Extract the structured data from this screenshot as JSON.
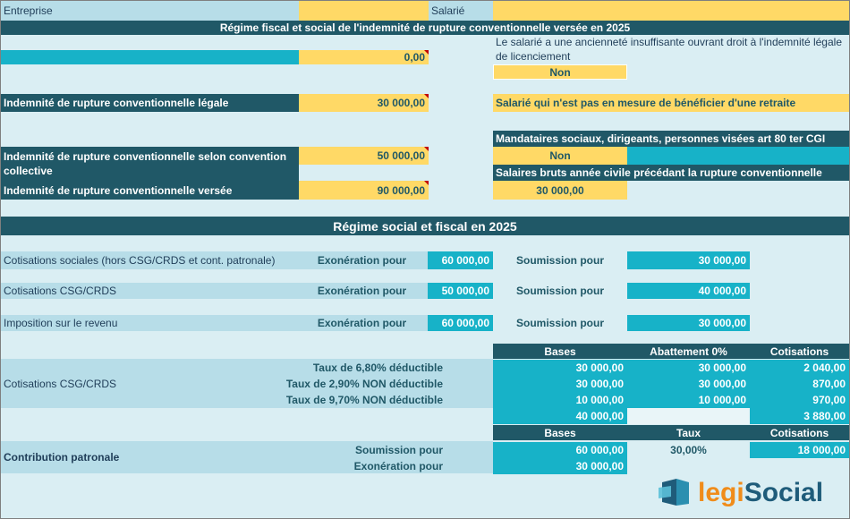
{
  "header": {
    "entreprise_label": "Entreprise",
    "salarie_label": "Salarié",
    "title": "Régime fiscal et social de l'indemnité de rupture conventionnelle versée en 2025"
  },
  "left": {
    "field1_value": "0,00",
    "legal_label": "Indemnité de rupture conventionnelle légale",
    "legal_value": "30 000,00",
    "collective_label": "Indemnité de rupture conventionnelle selon convention collective",
    "collective_value": "50 000,00",
    "versee_label": "Indemnité de rupture conventionnelle versée",
    "versee_value": "90 000,00"
  },
  "right": {
    "anciennete_text": "Le salarié a une ancienneté insuffisante ouvrant droit à l'indemnité légale de licenciement",
    "anciennete_value": "Non",
    "retraite_text": "Salarié qui n'est pas en mesure de bénéficier d'une retraite",
    "mandataires_text": "Mandataires sociaux, dirigeants, personnes visées art 80 ter CGI",
    "mandataires_value": "Non",
    "salaires_text": "Salaires bruts année civile précédant la rupture conventionnelle",
    "salaires_value": "30 000,00"
  },
  "regime": {
    "title": "Régime social et fiscal en 2025",
    "exoneration_label": "Exonération pour",
    "soumission_label": "Soumission pour",
    "rows": [
      {
        "label": "Cotisations sociales (hors CSG/CRDS et cont. patronale)",
        "exo": "60 000,00",
        "sou": "30 000,00"
      },
      {
        "label": "Cotisations CSG/CRDS",
        "exo": "50 000,00",
        "sou": "40 000,00"
      },
      {
        "label": "Imposition sur le revenu",
        "exo": "60 000,00",
        "sou": "30 000,00"
      }
    ]
  },
  "csg": {
    "headers": [
      "Bases",
      "Abattement 0%",
      "Cotisations"
    ],
    "label": "Cotisations CSG/CRDS",
    "rows": [
      {
        "label": "Taux de 6,80% déductible",
        "base": "30 000,00",
        "abatt": "30 000,00",
        "cot": "2 040,00"
      },
      {
        "label": "Taux de 2,90% NON déductible",
        "base": "30 000,00",
        "abatt": "30 000,00",
        "cot": "870,00"
      },
      {
        "label": "Taux de 9,70% NON déductible",
        "base": "10 000,00",
        "abatt": "10 000,00",
        "cot": "970,00"
      }
    ],
    "total_base": "40 000,00",
    "total_cot": "3 880,00"
  },
  "patronale": {
    "headers": [
      "Bases",
      "Taux",
      "Cotisations"
    ],
    "label": "Contribution patronale",
    "soumission_label": "Soumission pour",
    "exoneration_label": "Exonération pour",
    "soumission_base": "60 000,00",
    "taux": "30,00%",
    "cotisations": "18 000,00",
    "exoneration_base": "30 000,00"
  },
  "logo": {
    "text_legi": "legi",
    "text_social": "Social",
    "color_dark": "#1f5c7a",
    "color_accent": "#f08c1a"
  }
}
